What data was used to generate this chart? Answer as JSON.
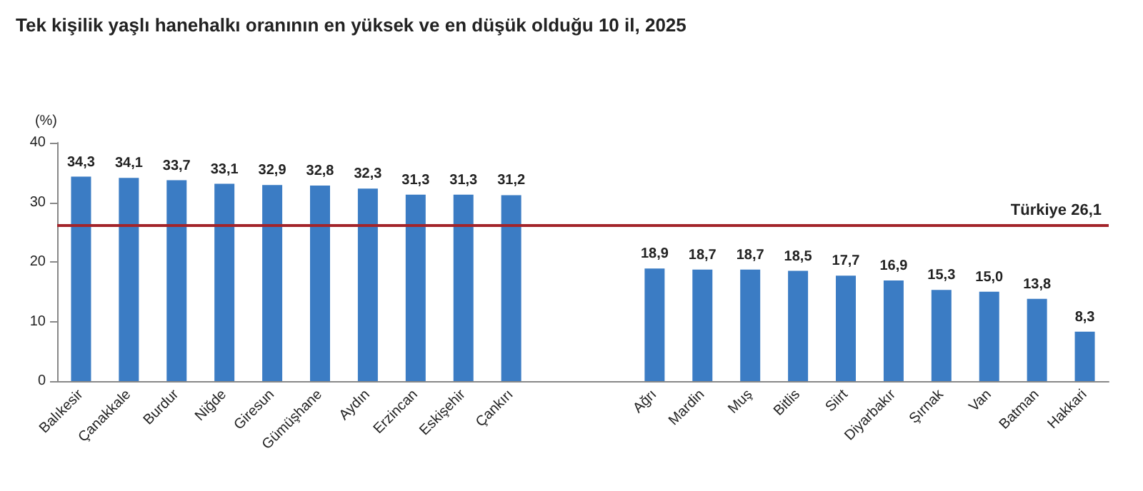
{
  "chart_data": {
    "type": "bar",
    "title": "Tek kişilik yaşlı hanehalkı oranının en yüksek ve en düşük olduğu 10 il, 2025",
    "ylabel": "(%)",
    "categories": [
      "Balıkesir",
      "Çanakkale",
      "Burdur",
      "Niğde",
      "Giresun",
      "Gümüşhane",
      "Aydın",
      "Erzincan",
      "Eskişehir",
      "Çankırı",
      null,
      null,
      "Ağrı",
      "Mardin",
      "Muş",
      "Bitlis",
      "Siirt",
      "Diyarbakır",
      "Şırnak",
      "Van",
      "Batman",
      "Hakkari"
    ],
    "values": [
      34.3,
      34.1,
      33.7,
      33.1,
      32.9,
      32.8,
      32.3,
      31.3,
      31.3,
      31.2,
      null,
      null,
      18.9,
      18.7,
      18.7,
      18.5,
      17.7,
      16.9,
      15.3,
      15.0,
      13.8,
      8.3
    ],
    "value_labels": [
      "34,3",
      "34,1",
      "33,7",
      "33,1",
      "32,9",
      "32,8",
      "32,3",
      "31,3",
      "31,3",
      "31,2",
      null,
      null,
      "18,9",
      "18,7",
      "18,7",
      "18,5",
      "17,7",
      "16,9",
      "15,3",
      "15,0",
      "13,8",
      "8,3"
    ],
    "color": "#3b7cc4",
    "ylim": [
      0,
      40
    ],
    "yticks": [
      0,
      10,
      20,
      30,
      40
    ],
    "grid": false,
    "ref_lines": [
      {
        "axis": "y",
        "value": 26.1,
        "label": "Türkiye 26,1",
        "color": "#a3242a"
      }
    ]
  }
}
